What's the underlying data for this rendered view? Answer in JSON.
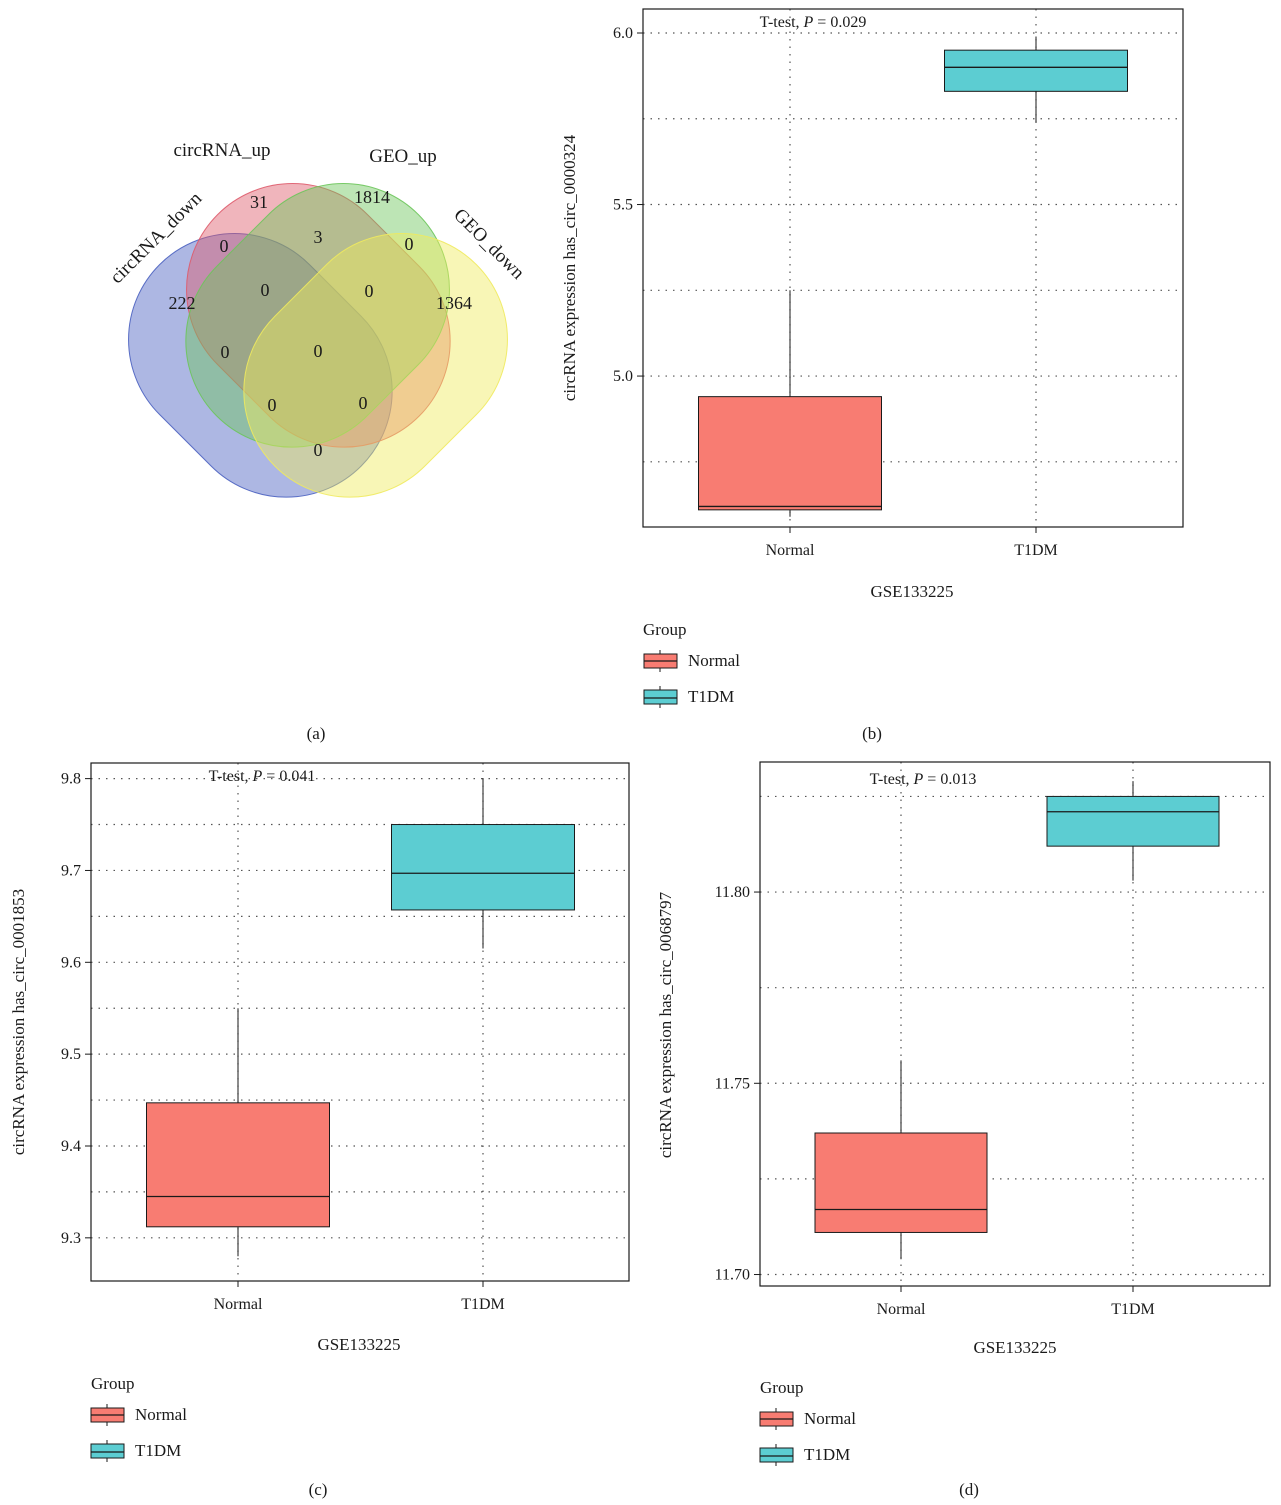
{
  "panels": {
    "a": "(a)",
    "b": "(b)",
    "c": "(c)",
    "d": "(d)"
  },
  "venn": {
    "sets": [
      "circRNA_down",
      "circRNA_up",
      "GEO_up",
      "GEO_down"
    ],
    "set_colors": [
      "#4a60c0",
      "#de5b6b",
      "#6cc55a",
      "#f0ea5e"
    ],
    "counts": {
      "circRNA_down_only": "222",
      "circRNA_up_only": "31",
      "GEO_up_only": "1814",
      "GEO_down_only": "1364",
      "down_up": "0",
      "up_geoup": "3",
      "geoup_geodown": "0",
      "down_geoup": "0",
      "up_geodown": "0",
      "down_up_geoup": "0",
      "up_geoup_geodown": "0",
      "all_four": "0",
      "down_up_geodown": "0",
      "down_geoup_geodown": "0",
      "down_geodown": "0"
    }
  },
  "legend": {
    "title": "Group",
    "items": [
      {
        "label": "Normal",
        "color": "#f87c72"
      },
      {
        "label": "T1DM",
        "color": "#5ccdd2"
      }
    ]
  },
  "chart_data": [
    {
      "panel": "b",
      "type": "box",
      "categories": [
        "Normal",
        "T1DM"
      ],
      "xlabel": "GSE133225",
      "ylabel": "circRNA expression has_circ_0000324",
      "annotation": {
        "prefix": "T-test, ",
        "p": "P",
        "rest": " = 0.029"
      },
      "ylim": [
        4.56,
        6.07
      ],
      "yticks": [
        5.0,
        5.5,
        6.0
      ],
      "ytick_labels": [
        "5.0",
        "5.5",
        "6.0"
      ],
      "minor_grid": [
        4.75,
        5.25,
        5.75
      ],
      "boxes": [
        {
          "whisker_low": 4.59,
          "q1": 4.61,
          "median": 4.62,
          "q3": 4.94,
          "whisker_high": 5.25
        },
        {
          "whisker_low": 5.74,
          "q1": 5.83,
          "median": 5.9,
          "q3": 5.95,
          "whisker_high": 5.99
        }
      ]
    },
    {
      "panel": "c",
      "type": "box",
      "categories": [
        "Normal",
        "T1DM"
      ],
      "xlabel": "GSE133225",
      "ylabel": "circRNA expression has_circ_0001853",
      "annotation": {
        "prefix": "T-test, ",
        "p": "P",
        "rest": " = 0.041"
      },
      "ylim": [
        9.253,
        9.817
      ],
      "yticks": [
        9.3,
        9.4,
        9.5,
        9.6,
        9.7,
        9.8
      ],
      "ytick_labels": [
        "9.3",
        "9.4",
        "9.5",
        "9.6",
        "9.7",
        "9.8"
      ],
      "minor_grid": [
        9.35,
        9.45,
        9.55,
        9.65,
        9.75
      ],
      "boxes": [
        {
          "whisker_low": 9.28,
          "q1": 9.312,
          "median": 9.345,
          "q3": 9.447,
          "whisker_high": 9.55
        },
        {
          "whisker_low": 9.615,
          "q1": 9.657,
          "median": 9.697,
          "q3": 9.75,
          "whisker_high": 9.8
        }
      ]
    },
    {
      "panel": "d",
      "type": "box",
      "categories": [
        "Normal",
        "T1DM"
      ],
      "xlabel": "GSE133225",
      "ylabel": "circRNA expression has_circ_0068797",
      "annotation": {
        "prefix": "T-test, ",
        "p": "P",
        "rest": " = 0.013"
      },
      "ylim": [
        11.697,
        11.834
      ],
      "yticks": [
        11.7,
        11.75,
        11.8
      ],
      "ytick_labels": [
        "11.70",
        "11.75",
        "11.80"
      ],
      "minor_grid": [
        11.725,
        11.775,
        11.825
      ],
      "boxes": [
        {
          "whisker_low": 11.704,
          "q1": 11.711,
          "median": 11.717,
          "q3": 11.737,
          "whisker_high": 11.756
        },
        {
          "whisker_low": 11.803,
          "q1": 11.812,
          "median": 11.821,
          "q3": 11.825,
          "whisker_high": 11.829
        }
      ]
    }
  ]
}
